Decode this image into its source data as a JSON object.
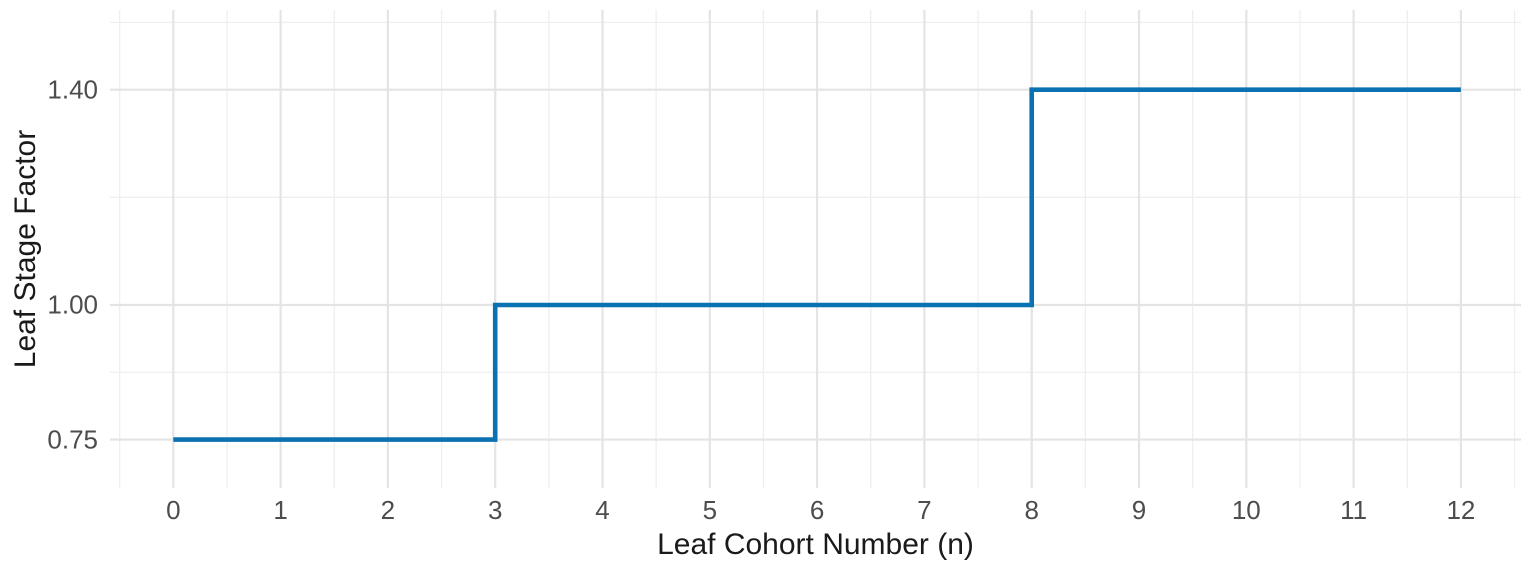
{
  "figure": {
    "background": "#ffffff",
    "tick_label_color": "#4d4d4d",
    "axis_title_color": "#1a1a1a"
  },
  "chart_data": {
    "type": "line",
    "subtype": "step-hv",
    "title": "",
    "xlabel": "Leaf Cohort Number (n)",
    "ylabel": "Leaf Stage Factor",
    "legend_position": "none",
    "grid": {
      "enabled": true,
      "major_color": "#e4e4e4",
      "minor_color": "#efefef",
      "major_width": 2.2,
      "minor_width": 1.3
    },
    "series": [
      {
        "name": "Leaf Stage Factor",
        "color": "#0a72b2",
        "stroke_width": 4.6,
        "steps": [
          {
            "x_from": 0,
            "x_to": 3,
            "y": 0.75
          },
          {
            "x_from": 3,
            "x_to": 8,
            "y": 1.0
          },
          {
            "x_from": 8,
            "x_to": 12,
            "y": 1.4
          }
        ]
      }
    ],
    "x_ticks": [
      0,
      1,
      2,
      3,
      4,
      5,
      6,
      7,
      8,
      9,
      10,
      11,
      12
    ],
    "x_tick_labels": [
      "0",
      "1",
      "2",
      "3",
      "4",
      "5",
      "6",
      "7",
      "8",
      "9",
      "10",
      "11",
      "12"
    ],
    "y_ticks": [
      0.75,
      1.0,
      1.4
    ],
    "y_tick_labels": [
      "0.75",
      "1.00",
      "1.40"
    ],
    "x_minor_gridlines": [
      -0.5,
      0.5,
      1.5,
      2.5,
      3.5,
      4.5,
      5.5,
      6.5,
      7.5,
      8.5,
      9.5,
      10.5,
      11.5,
      12.5
    ],
    "y_minor_gridlines": [
      0.875,
      1.2,
      1.525
    ],
    "xlim": [
      -0.59,
      12.56
    ],
    "ylim": [
      0.66,
      1.548
    ]
  }
}
